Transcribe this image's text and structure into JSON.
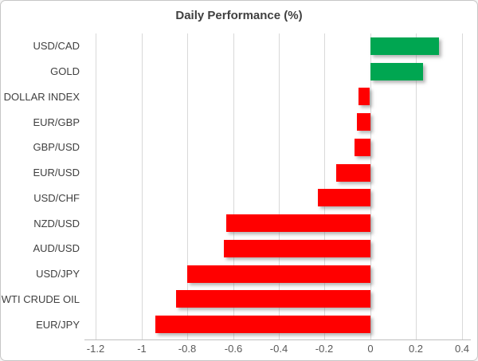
{
  "chart_data": {
    "type": "bar",
    "orientation": "horizontal",
    "title": "Daily Performance (%)",
    "categories": [
      "USD/CAD",
      "GOLD",
      "DOLLAR INDEX",
      "EUR/GBP",
      "GBP/USD",
      "EUR/USD",
      "USD/CHF",
      "NZD/USD",
      "AUD/USD",
      "USD/JPY",
      "WTI CRUDE OIL",
      "EUR/JPY"
    ],
    "values": [
      0.3,
      0.23,
      -0.05,
      -0.06,
      -0.07,
      -0.15,
      -0.23,
      -0.63,
      -0.64,
      -0.8,
      -0.85,
      -0.94
    ],
    "x_ticks": [
      -1.2,
      -1,
      -0.8,
      -0.6,
      -0.4,
      -0.2,
      0,
      0.2,
      0.4
    ],
    "xlim": [
      -1.25,
      0.44
    ],
    "xlabel": "",
    "ylabel": "",
    "grid": true,
    "legend": false,
    "colors": {
      "positive_bar": "#00A651",
      "negative_bar": "#FF0000",
      "gridline": "#D9D9D9",
      "title_text": "#404040",
      "category_text": "#404040",
      "tick_text": "#595959",
      "background": "#FFFFFF"
    }
  }
}
